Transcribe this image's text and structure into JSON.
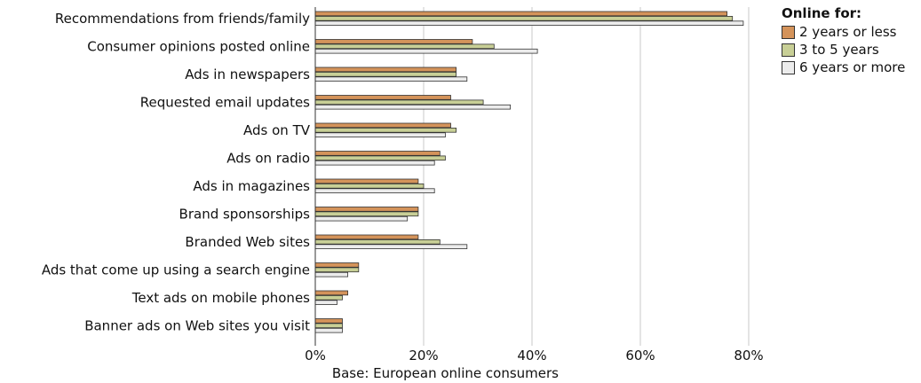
{
  "chart_data": {
    "type": "bar",
    "orientation": "horizontal",
    "categories": [
      "Recommendations from friends/family",
      "Consumer opinions posted online",
      "Ads in newspapers",
      "Requested email updates",
      "Ads on TV",
      "Ads on radio",
      "Ads in magazines",
      "Brand sponsorships",
      "Branded Web sites",
      "Ads that come up using a search engine",
      "Text ads on mobile phones",
      "Banner ads on Web sites you visit"
    ],
    "series": [
      {
        "name": "2 years or less",
        "color": "#d4935a",
        "values": [
          76,
          29,
          26,
          25,
          25,
          23,
          19,
          19,
          19,
          8,
          6,
          5
        ]
      },
      {
        "name": "3 to 5 years",
        "color": "#c8cf96",
        "values": [
          77,
          33,
          26,
          31,
          26,
          24,
          20,
          19,
          23,
          8,
          5,
          5
        ]
      },
      {
        "name": "6 years or more",
        "color": "#ececec",
        "values": [
          79,
          41,
          28,
          36,
          24,
          22,
          22,
          17,
          28,
          6,
          4,
          5
        ]
      }
    ],
    "xlim": [
      0,
      80
    ],
    "xticks": [
      "0%",
      "20%",
      "40%",
      "60%",
      "80%"
    ],
    "grid": true,
    "legend_title": "Online for:",
    "legend_position": "top-right",
    "base_note": "Base: European online consumers"
  }
}
